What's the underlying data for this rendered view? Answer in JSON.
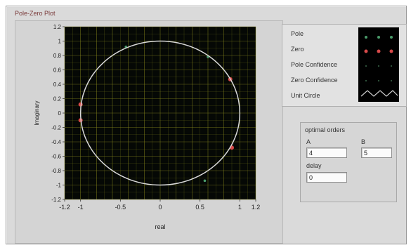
{
  "panel": {
    "title": "Pole-Zero Plot"
  },
  "plot": {
    "x_axis_label": "real",
    "y_axis_label": "Imaginary",
    "x_ticks": [
      "-1.2",
      "-1",
      "-0.5",
      "0",
      "0.5",
      "1",
      "1.2"
    ],
    "y_ticks": [
      "1.2",
      "1",
      "0.8",
      "0.6",
      "0.4",
      "0.2",
      "0",
      "-0.2",
      "-0.4",
      "-0.6",
      "-0.8",
      "-1",
      "-1.2"
    ],
    "colors": {
      "background": "#050805",
      "grid": "#8c8c1e",
      "circle": "#d8d8d8",
      "pole": "#d84a4a",
      "zero": "#4a9a6a"
    }
  },
  "legend": {
    "items": [
      "Pole",
      "Zero",
      "Pole Confidence",
      "Zero Confidence",
      "Unit Circle"
    ]
  },
  "optimal_orders": {
    "title": "optimal orders",
    "a_label": "A",
    "a_value": "4",
    "b_label": "B",
    "b_value": "5",
    "delay_label": "delay",
    "delay_value": "0"
  },
  "chart_data": {
    "type": "scatter",
    "xlabel": "real",
    "ylabel": "Imaginary",
    "xlim": [
      -1.2,
      1.2
    ],
    "ylim": [
      -1.2,
      1.2
    ],
    "grid": true,
    "legend_placement": "right",
    "series": [
      {
        "name": "Pole",
        "points": [
          [
            -1.0,
            0.12
          ],
          [
            -1.0,
            -0.1
          ],
          [
            0.88,
            0.47
          ],
          [
            0.9,
            -0.48
          ]
        ]
      },
      {
        "name": "Zero",
        "points": [
          [
            -0.43,
            0.92
          ],
          [
            0.6,
            0.78
          ],
          [
            0.56,
            -0.94
          ]
        ]
      },
      {
        "name": "Unit Circle",
        "shape": "circle",
        "radius": 1.0
      }
    ]
  }
}
